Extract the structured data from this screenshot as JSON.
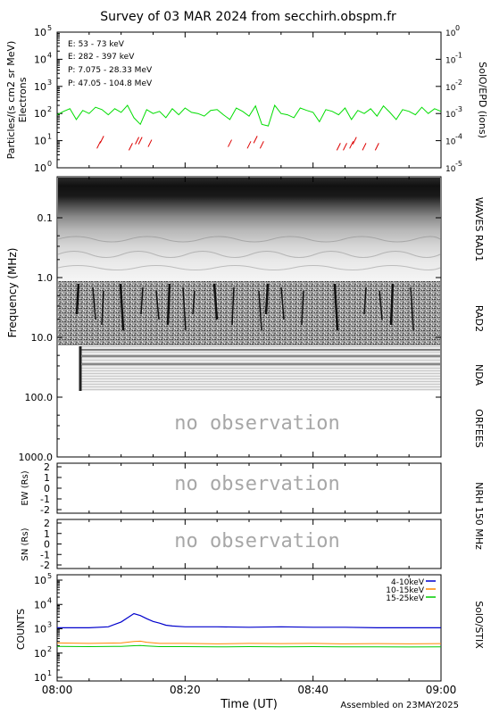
{
  "title": "Survey of 03 MAR 2024 from secchirh.obspm.fr",
  "footer": {
    "time_label": "Time (UT)",
    "assembled": "Assembled on 23MAY2025",
    "ticks": [
      "08:00",
      "08:20",
      "08:40",
      "09:00"
    ]
  },
  "no_observation": "no observation",
  "colors": {
    "e53": "#00dd00",
    "e282": "#dd0000",
    "p7": "#000000",
    "p47": "#0000cc",
    "stix1": "#0000cc",
    "stix2": "#ff8800",
    "stix3": "#00cc00"
  },
  "particles": {
    "ylabel_line1": "Particles/(s cm2 sr MeV)",
    "ylabel_line2": "Electrons",
    "right_label": "SolO/EPD (ions)",
    "legend": [
      {
        "text": "E: 53 - 73 keV",
        "color": "#00dd00"
      },
      {
        "text": "E: 282 - 397 keV",
        "color": "#dd0000"
      },
      {
        "text": "P: 7.075 - 28.33 MeV",
        "color": "#000000"
      },
      {
        "text": "P: 47.05 - 104.8 MeV",
        "color": "#0000cc"
      }
    ],
    "left_ticks": [
      {
        "base": "10",
        "exp": "0"
      },
      {
        "base": "10",
        "exp": "1"
      },
      {
        "base": "10",
        "exp": "2"
      },
      {
        "base": "10",
        "exp": "3"
      },
      {
        "base": "10",
        "exp": "4"
      },
      {
        "base": "10",
        "exp": "5"
      }
    ],
    "right_ticks": [
      {
        "base": "10",
        "exp": "-5"
      },
      {
        "base": "10",
        "exp": "-4"
      },
      {
        "base": "10",
        "exp": "-3"
      },
      {
        "base": "10",
        "exp": "-2"
      },
      {
        "base": "10",
        "exp": "-1"
      },
      {
        "base": "10",
        "exp": "0"
      }
    ]
  },
  "radio": {
    "ylabel": "Frequency (MHz)",
    "ticks": [
      "0.1",
      "1.0",
      "10.0",
      "100.0",
      "1000.0"
    ],
    "labels": [
      "WAVES RAD1",
      "RAD2",
      "NDA",
      "ORFEES"
    ]
  },
  "nrh": {
    "label": "NRH 150 MHz",
    "ew_label": "EW (Rs)",
    "sn_label": "SN (Rs)",
    "ticks": [
      "2",
      "1",
      "0",
      "-1",
      "-2"
    ]
  },
  "stix": {
    "ylabel": "COUNTS",
    "right_label": "SolO/STIX",
    "legend": [
      "4-10keV",
      "10-15keV",
      "15-25keV"
    ],
    "ticks": [
      {
        "base": "10",
        "exp": "1"
      },
      {
        "base": "10",
        "exp": "2"
      },
      {
        "base": "10",
        "exp": "3"
      },
      {
        "base": "10",
        "exp": "4"
      },
      {
        "base": "10",
        "exp": "5"
      }
    ]
  },
  "chart_data": [
    {
      "type": "line",
      "title": "SolO/EPD",
      "xlim": [
        "08:00",
        "09:00"
      ],
      "ylim": [
        1,
        100000
      ],
      "yscale": "log",
      "series": [
        {
          "name": "E: 53 - 73 keV",
          "x_minutes": [
            0,
            1,
            2,
            3,
            4,
            5,
            6,
            7,
            8,
            9,
            10,
            11,
            12,
            13,
            14,
            15,
            16,
            17,
            18,
            19,
            20,
            21,
            22,
            23,
            24,
            25,
            26,
            27,
            28,
            29,
            30,
            31,
            32,
            33,
            34,
            35,
            36,
            37,
            38,
            39,
            40,
            41,
            42,
            43,
            44,
            45,
            46,
            47,
            48,
            49,
            50,
            51,
            52,
            53,
            54,
            55,
            56,
            57,
            58,
            59,
            60
          ],
          "values": [
            90,
            120,
            150,
            60,
            130,
            100,
            170,
            140,
            90,
            150,
            110,
            200,
            70,
            40,
            140,
            100,
            120,
            70,
            150,
            90,
            160,
            110,
            100,
            80,
            130,
            140,
            90,
            60,
            160,
            120,
            80,
            190,
            40,
            35,
            200,
            100,
            90,
            70,
            160,
            130,
            110,
            50,
            140,
            120,
            90,
            160,
            60,
            130,
            100,
            150,
            80,
            190,
            110,
            60,
            140,
            120,
            90,
            170,
            100,
            150,
            120
          ]
        },
        {
          "name": "E: 282 - 397 keV",
          "points": [
            [
              6.5,
              7
            ],
            [
              7,
              11
            ],
            [
              11.5,
              6
            ],
            [
              12.5,
              10
            ],
            [
              13,
              10
            ],
            [
              14.5,
              8
            ],
            [
              27,
              8
            ],
            [
              30,
              7
            ],
            [
              31,
              11
            ],
            [
              32,
              7
            ],
            [
              44,
              6
            ],
            [
              45,
              6
            ],
            [
              46,
              7
            ],
            [
              46.5,
              10
            ],
            [
              48,
              6
            ],
            [
              50,
              6
            ]
          ]
        }
      ]
    },
    {
      "type": "line",
      "title": "SolO/STIX",
      "xlim": [
        "08:00",
        "09:00"
      ],
      "ylim": [
        10,
        100000
      ],
      "yscale": "log",
      "series": [
        {
          "name": "4-10keV",
          "x_minutes": [
            0,
            5,
            8,
            10,
            11,
            12,
            13,
            14,
            15,
            16,
            17,
            18,
            20,
            25,
            30,
            35,
            40,
            45,
            50,
            55,
            60
          ],
          "values": [
            1100,
            1100,
            1200,
            1900,
            2800,
            4200,
            3500,
            2600,
            2000,
            1700,
            1400,
            1300,
            1200,
            1200,
            1150,
            1200,
            1150,
            1150,
            1100,
            1100,
            1100
          ]
        },
        {
          "name": "10-15keV",
          "x_minutes": [
            0,
            5,
            10,
            12,
            13,
            14,
            16,
            20,
            25,
            30,
            35,
            40,
            45,
            50,
            55,
            60
          ],
          "values": [
            260,
            250,
            260,
            300,
            310,
            280,
            250,
            250,
            240,
            250,
            245,
            250,
            240,
            245,
            240,
            245
          ]
        },
        {
          "name": "15-25keV",
          "x_minutes": [
            0,
            5,
            10,
            12,
            13,
            14,
            16,
            20,
            25,
            30,
            35,
            40,
            45,
            50,
            55,
            60
          ],
          "values": [
            190,
            185,
            190,
            200,
            205,
            195,
            185,
            185,
            180,
            185,
            180,
            185,
            180,
            180,
            178,
            180
          ]
        }
      ]
    }
  ]
}
